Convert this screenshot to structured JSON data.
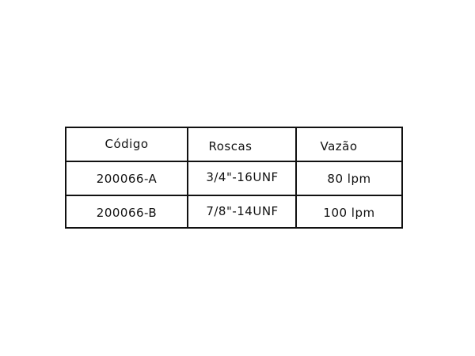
{
  "table": {
    "headers": [
      "Código",
      "Roscas",
      "Vazão"
    ],
    "rows": [
      [
        "200066-A",
        "3/4\"-16UNF",
        "80 lpm"
      ],
      [
        "200066-B",
        "7/8\"-14UNF",
        "100 lpm"
      ]
    ]
  }
}
